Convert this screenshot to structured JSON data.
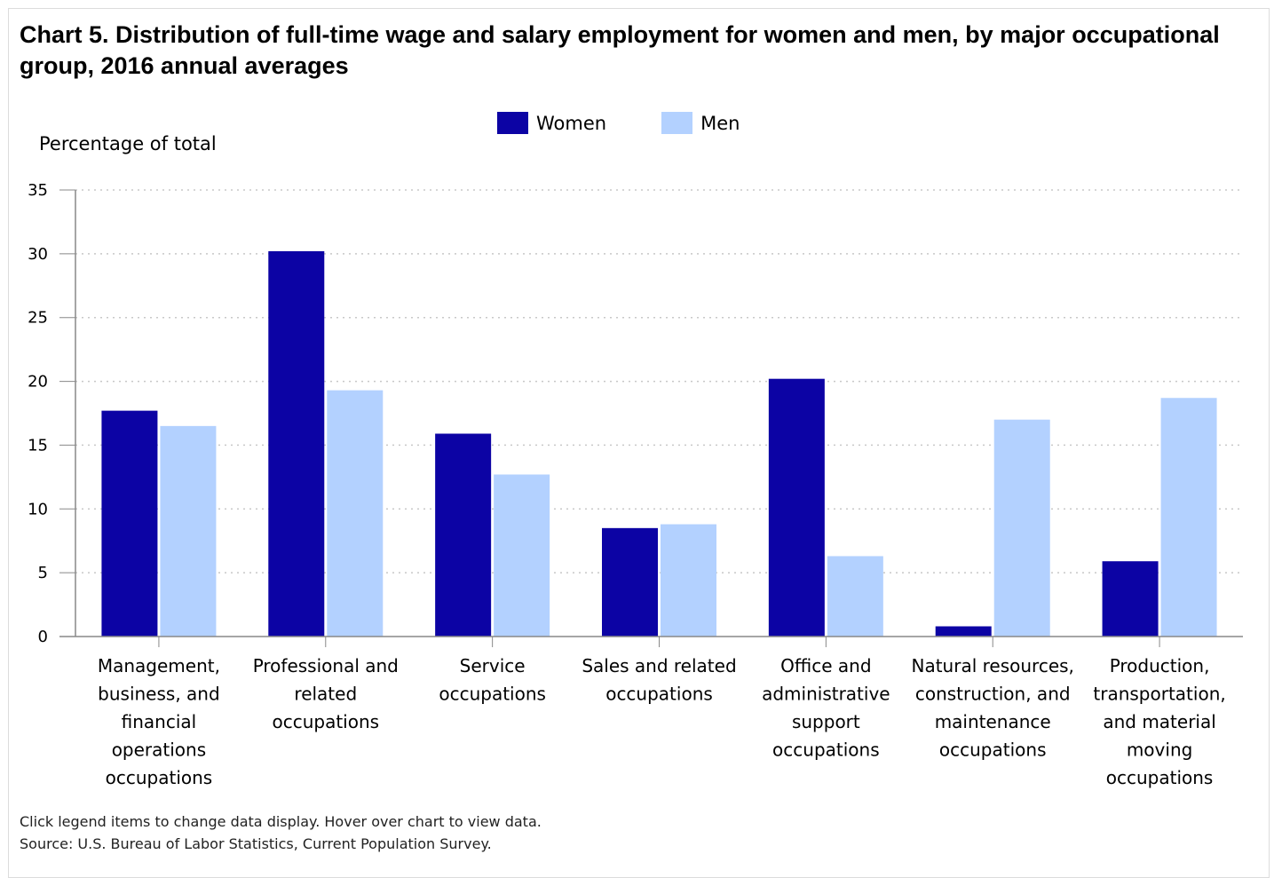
{
  "title": "Chart 5. Distribution of full-time wage and salary employment for women and men, by major occupational group, 2016 annual averages",
  "footer": {
    "note": "Click legend items to change data display. Hover over chart to view data.",
    "source": "Source: U.S. Bureau of Labor Statistics, Current Population Survey."
  },
  "colors": {
    "women": "#0c03a4",
    "men": "#b3d1ff",
    "grid": "#c8c8c8",
    "axis": "#888888"
  },
  "chart_data": {
    "type": "bar",
    "ylabel": "Percentage of total",
    "ylim": [
      0,
      35
    ],
    "yticks": [
      0,
      5,
      10,
      15,
      20,
      25,
      30,
      35
    ],
    "grid": true,
    "legend_position": "top-center",
    "categories": [
      [
        "Management,",
        "business, and",
        "financial",
        "operations",
        "occupations"
      ],
      [
        "Professional and",
        "related",
        "occupations"
      ],
      [
        "Service",
        "occupations"
      ],
      [
        "Sales and related",
        "occupations"
      ],
      [
        "Office and",
        "administrative",
        "support",
        "occupations"
      ],
      [
        "Natural resources,",
        "construction, and",
        "maintenance",
        "occupations"
      ],
      [
        "Production,",
        "transportation,",
        "and material",
        "moving",
        "occupations"
      ]
    ],
    "series": [
      {
        "name": "Women",
        "values": [
          17.7,
          30.2,
          15.9,
          8.5,
          20.2,
          0.8,
          5.9
        ]
      },
      {
        "name": "Men",
        "values": [
          16.5,
          19.3,
          12.7,
          8.8,
          6.3,
          17.0,
          18.7
        ]
      }
    ]
  }
}
